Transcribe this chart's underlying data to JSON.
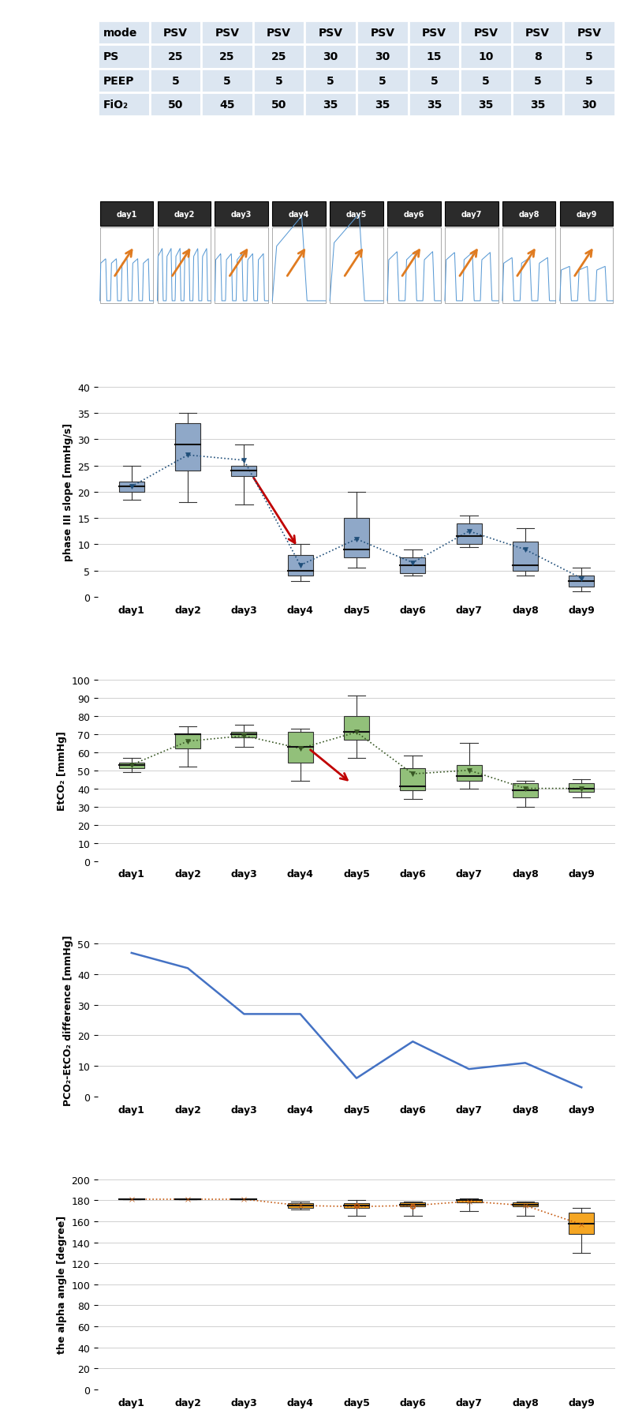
{
  "days": [
    "day1",
    "day2",
    "day3",
    "day4",
    "day5",
    "day6",
    "day7",
    "day8",
    "day9"
  ],
  "table": {
    "mode": [
      "PSV",
      "PSV",
      "PSV",
      "PSV",
      "PSV",
      "PSV",
      "PSV",
      "PSV",
      "PSV"
    ],
    "PS": [
      25,
      25,
      25,
      30,
      30,
      15,
      10,
      8,
      5
    ],
    "PEEP": [
      5,
      5,
      5,
      5,
      5,
      5,
      5,
      5,
      5
    ],
    "FiO2": [
      50,
      45,
      50,
      35,
      35,
      35,
      35,
      35,
      30
    ]
  },
  "phase3": {
    "medians": [
      21.0,
      29.0,
      24.0,
      5.0,
      9.0,
      6.0,
      11.5,
      6.0,
      3.0
    ],
    "q1": [
      20.0,
      24.0,
      23.0,
      4.0,
      7.5,
      4.5,
      10.0,
      5.0,
      2.0
    ],
    "q3": [
      22.0,
      33.0,
      25.0,
      8.0,
      15.0,
      7.5,
      14.0,
      10.5,
      4.0
    ],
    "whislo": [
      18.5,
      18.0,
      17.5,
      3.0,
      5.5,
      4.0,
      9.5,
      4.0,
      1.0
    ],
    "whishi": [
      25.0,
      35.0,
      29.0,
      10.0,
      20.0,
      9.0,
      15.5,
      13.0,
      5.5
    ],
    "means": [
      21.0,
      27.0,
      26.0,
      6.0,
      11.0,
      6.5,
      12.5,
      9.0,
      3.5
    ],
    "ylim": [
      0,
      40
    ],
    "yticks": [
      0,
      5,
      10,
      15,
      20,
      25,
      30,
      35,
      40
    ],
    "ylabel": "phase III slope [mmHg/s]"
  },
  "etco2": {
    "medians": [
      53.0,
      70.0,
      70.0,
      63.0,
      71.0,
      41.0,
      47.0,
      39.0,
      40.0
    ],
    "q1": [
      51.0,
      62.0,
      68.0,
      54.0,
      67.0,
      39.0,
      44.0,
      35.0,
      38.0
    ],
    "q3": [
      54.0,
      70.0,
      71.0,
      71.0,
      80.0,
      51.0,
      53.0,
      43.0,
      43.0
    ],
    "whislo": [
      49.0,
      52.0,
      63.0,
      44.0,
      57.0,
      34.0,
      40.0,
      30.0,
      35.0
    ],
    "whishi": [
      57.0,
      74.0,
      75.0,
      73.0,
      91.0,
      58.0,
      65.0,
      44.0,
      45.0
    ],
    "means": [
      53.0,
      66.0,
      69.0,
      62.0,
      71.0,
      48.0,
      50.0,
      40.0,
      40.0
    ],
    "ylim": [
      0,
      100
    ],
    "yticks": [
      0,
      10,
      20,
      30,
      40,
      50,
      60,
      70,
      80,
      90,
      100
    ],
    "ylabel": "EtCO₂ [mmHg]"
  },
  "pco2": {
    "values": [
      47.0,
      42.0,
      27.0,
      27.0,
      6.0,
      18.0,
      9.0,
      11.0,
      3.0
    ],
    "ylim": [
      0,
      50
    ],
    "yticks": [
      0,
      10,
      20,
      30,
      40,
      50
    ],
    "ylabel": "PCO₂-EtCO₂ difference [mmHg]"
  },
  "alpha": {
    "medians": [
      181.0,
      181.0,
      181.0,
      175.0,
      175.0,
      176.0,
      180.0,
      176.0,
      158.0
    ],
    "q1": [
      181.0,
      181.0,
      181.0,
      173.0,
      173.0,
      174.0,
      178.0,
      174.0,
      148.0
    ],
    "q3": [
      181.0,
      181.0,
      181.0,
      177.0,
      177.0,
      178.0,
      181.0,
      178.0,
      168.0
    ],
    "whislo": [
      181.0,
      181.0,
      181.0,
      171.0,
      165.0,
      165.0,
      170.0,
      165.0,
      130.0
    ],
    "whishi": [
      181.0,
      181.0,
      181.0,
      179.0,
      180.0,
      179.0,
      182.0,
      179.0,
      173.0
    ],
    "means": [
      181.0,
      181.0,
      181.0,
      175.0,
      174.0,
      175.0,
      179.0,
      175.0,
      157.0
    ],
    "outliers": [
      [],
      [],
      [],
      [],
      [
        175.0
      ],
      [
        174.0
      ],
      [],
      [],
      []
    ],
    "ylim": [
      0,
      200
    ],
    "yticks": [
      0,
      20,
      40,
      60,
      80,
      100,
      120,
      140,
      160,
      180,
      200
    ],
    "ylabel": "the alpha angle [degree]"
  },
  "colors": {
    "table_bg": "#dce6f1",
    "box_blue": "#8fa8c8",
    "box_green": "#92c07a",
    "box_orange": "#f5a623",
    "line_blue": "#4472c4",
    "mean_orange": "#c55a11",
    "mean_blue": "#1f4e79",
    "mean_green": "#375623",
    "waveform_blue": "#5b9bd5",
    "arrow_orange": "#e07b20",
    "red_arrow": "#c00000",
    "grid_color": "#d0d0d0"
  }
}
